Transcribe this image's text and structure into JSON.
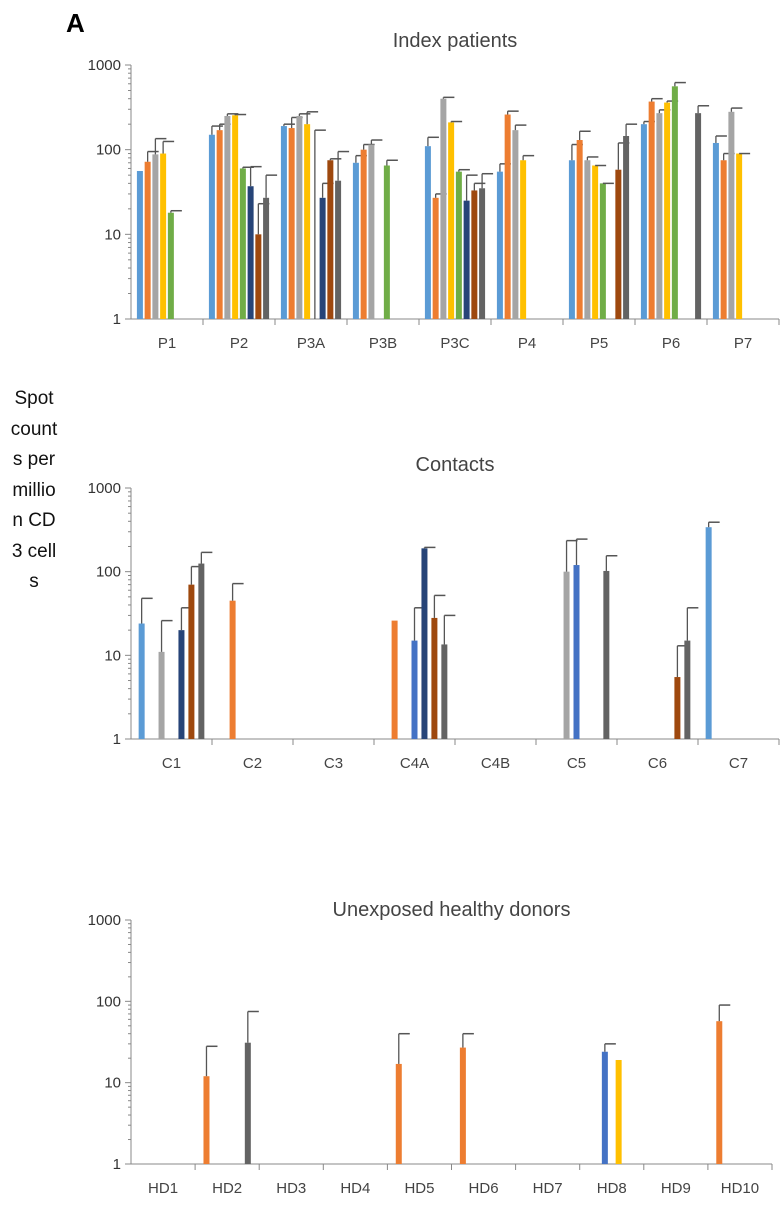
{
  "panel_label": "A",
  "y_axis_label": "Spot counts per million CD3 cells",
  "chart_data": [
    {
      "type": "bar",
      "title": "Index patients",
      "yscale": "log",
      "ylim": [
        1,
        1000
      ],
      "yticks": [
        "1",
        "10",
        "100",
        "1000"
      ],
      "categories": [
        "P1",
        "P2",
        "P3A",
        "P3B",
        "P3C",
        "P4",
        "P5",
        "P6",
        "P7"
      ],
      "series": [
        {
          "color": "#5B9BD5",
          "values": [
            56,
            150,
            190,
            70,
            110,
            55,
            75,
            200,
            120
          ],
          "errors": [
            null,
            190,
            200,
            85,
            140,
            68,
            115,
            215,
            145
          ]
        },
        {
          "color": "#ED7D31",
          "values": [
            72,
            170,
            180,
            100,
            27,
            260,
            130,
            370,
            75
          ],
          "errors": [
            95,
            200,
            240,
            115,
            30,
            285,
            165,
            400,
            90
          ]
        },
        {
          "color": "#A5A5A5",
          "values": [
            88,
            250,
            250,
            115,
            400,
            170,
            75,
            270,
            280
          ],
          "errors": [
            135,
            265,
            265,
            130,
            415,
            195,
            82,
            295,
            310
          ]
        },
        {
          "color": "#FFC000",
          "values": [
            90,
            255,
            200,
            null,
            210,
            75,
            65,
            360,
            90
          ],
          "errors": [
            125,
            260,
            280,
            null,
            215,
            85,
            65,
            375,
            90
          ]
        },
        {
          "color": "#70AD47",
          "values": [
            18,
            60,
            null,
            65,
            55,
            null,
            40,
            560,
            null
          ],
          "errors": [
            19,
            62,
            170,
            75,
            58,
            null,
            40,
            620,
            null
          ]
        },
        {
          "color": "#264478",
          "values": [
            null,
            37,
            27,
            null,
            25,
            null,
            null,
            null,
            null
          ],
          "errors": [
            null,
            63,
            40,
            null,
            50,
            null,
            null,
            null,
            null
          ]
        },
        {
          "color": "#9E480E",
          "values": [
            null,
            10,
            75,
            null,
            33,
            null,
            58,
            null,
            null
          ],
          "errors": [
            null,
            23,
            78,
            null,
            40,
            null,
            120,
            null,
            null
          ]
        },
        {
          "color": "#636363",
          "values": [
            null,
            27,
            43,
            null,
            35,
            null,
            145,
            270,
            null
          ],
          "errors": [
            null,
            50,
            95,
            null,
            52,
            null,
            200,
            330,
            null
          ]
        }
      ]
    },
    {
      "type": "bar",
      "title": "Contacts",
      "yscale": "log",
      "ylim": [
        1,
        1000
      ],
      "yticks": [
        "1",
        "10",
        "100",
        "1000"
      ],
      "categories": [
        "C1",
        "C2",
        "C3",
        "C4A",
        "C4B",
        "C5",
        "C6",
        "C7"
      ],
      "series": [
        {
          "color": "#5B9BD5",
          "values": [
            24,
            null,
            null,
            null,
            null,
            null,
            null,
            340
          ],
          "errors": [
            48,
            null,
            null,
            null,
            null,
            null,
            null,
            390
          ]
        },
        {
          "color": "#ED7D31",
          "values": [
            null,
            45,
            null,
            26,
            null,
            null,
            null,
            null
          ],
          "errors": [
            null,
            72,
            null,
            null,
            null,
            null,
            null,
            null
          ]
        },
        {
          "color": "#A5A5A5",
          "values": [
            11,
            null,
            null,
            null,
            null,
            100,
            null,
            null
          ],
          "errors": [
            26,
            null,
            null,
            null,
            null,
            235,
            null,
            null
          ]
        },
        {
          "color": "#4472C4",
          "values": [
            null,
            null,
            null,
            15,
            null,
            120,
            null,
            null
          ],
          "errors": [
            null,
            null,
            null,
            37,
            null,
            245,
            null,
            null
          ]
        },
        {
          "color": "#264478",
          "values": [
            20,
            null,
            null,
            190,
            null,
            null,
            null,
            null
          ],
          "errors": [
            37,
            null,
            null,
            195,
            null,
            null,
            null,
            null
          ]
        },
        {
          "color": "#9E480E",
          "values": [
            70,
            null,
            null,
            28,
            null,
            null,
            5.5,
            null
          ],
          "errors": [
            115,
            null,
            null,
            52,
            null,
            null,
            13,
            null
          ]
        },
        {
          "color": "#636363",
          "values": [
            125,
            null,
            null,
            13.5,
            null,
            102,
            15,
            null
          ],
          "errors": [
            170,
            null,
            null,
            30,
            null,
            155,
            37,
            null
          ]
        }
      ]
    },
    {
      "type": "bar",
      "title": "Unexposed healthy donors",
      "yscale": "log",
      "ylim": [
        1,
        1000
      ],
      "yticks": [
        "1",
        "10",
        "100",
        "1000"
      ],
      "categories": [
        "HD1",
        "HD2",
        "HD3",
        "HD4",
        "HD5",
        "HD6",
        "HD7",
        "HD8",
        "HD9",
        "HD10"
      ],
      "series": [
        {
          "color": "#ED7D31",
          "values": [
            null,
            12,
            null,
            null,
            17,
            27,
            null,
            null,
            null,
            57
          ],
          "errors": [
            null,
            28,
            null,
            null,
            40,
            40,
            null,
            null,
            null,
            90
          ]
        },
        {
          "color": "#4472C4",
          "values": [
            null,
            null,
            null,
            null,
            null,
            null,
            null,
            24,
            null,
            null
          ],
          "errors": [
            null,
            null,
            null,
            null,
            null,
            null,
            null,
            30,
            null,
            null
          ]
        },
        {
          "color": "#FFC000",
          "values": [
            null,
            null,
            null,
            null,
            null,
            null,
            null,
            19,
            null,
            null
          ],
          "errors": [
            null,
            null,
            null,
            null,
            null,
            null,
            null,
            null,
            null,
            null
          ]
        },
        {
          "color": "#636363",
          "values": [
            null,
            31,
            null,
            null,
            null,
            null,
            null,
            null,
            null,
            null
          ],
          "errors": [
            null,
            75,
            null,
            null,
            null,
            null,
            null,
            null,
            null,
            null
          ]
        }
      ]
    }
  ]
}
